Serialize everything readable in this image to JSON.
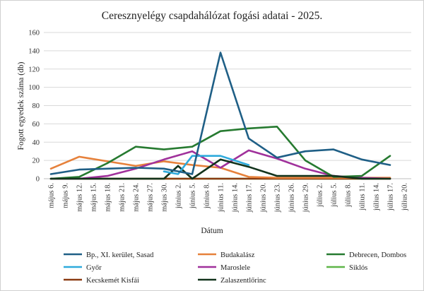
{
  "chart_data": {
    "type": "line",
    "title": "Ceresznyelégy csapdahálózat fogási adatai - 2025.",
    "xlabel": "Dátum",
    "ylabel": "Fogott egyedek száma (db)",
    "ylim": [
      0,
      160
    ],
    "yticks": [
      0,
      20,
      40,
      60,
      80,
      100,
      120,
      140,
      160
    ],
    "grid": true,
    "legend_position": "bottom",
    "x": [
      "május 6.",
      "május 9.",
      "május 12.",
      "május 15.",
      "május 18.",
      "május 21.",
      "május 24.",
      "május 27.",
      "május 30.",
      "június 2.",
      "június 5.",
      "június 8.",
      "június 11.",
      "június 14.",
      "június 17.",
      "június 20.",
      "június 23.",
      "június 26.",
      "június 29.",
      "július 2.",
      "július 5.",
      "július 8.",
      "július 11.",
      "július 14.",
      "július 17.",
      "július 20."
    ],
    "series": [
      {
        "name": "Bp., XI. kerület, Sasad",
        "color": "#1f5f86",
        "points": [
          [
            0,
            5
          ],
          [
            2,
            10
          ],
          [
            4,
            11
          ],
          [
            6,
            12
          ],
          [
            8,
            11
          ],
          [
            10,
            5
          ],
          [
            12,
            138
          ],
          [
            14,
            44
          ],
          [
            16,
            23
          ],
          [
            18,
            30
          ],
          [
            20,
            32
          ],
          [
            22,
            21
          ],
          [
            24,
            15
          ]
        ]
      },
      {
        "name": "Budakalász",
        "color": "#e6813b",
        "points": [
          [
            0,
            11
          ],
          [
            2,
            24
          ],
          [
            4,
            19
          ],
          [
            6,
            14
          ],
          [
            8,
            19
          ],
          [
            10,
            15
          ],
          [
            12,
            12
          ],
          [
            14,
            2
          ],
          [
            16,
            1
          ],
          [
            18,
            1
          ],
          [
            20,
            1
          ],
          [
            22,
            1
          ],
          [
            24,
            1
          ]
        ]
      },
      {
        "name": "Debrecen, Dombos",
        "color": "#267a30",
        "points": [
          [
            0,
            0
          ],
          [
            2,
            2
          ],
          [
            4,
            17
          ],
          [
            6,
            35
          ],
          [
            8,
            32
          ],
          [
            10,
            35
          ],
          [
            12,
            52
          ],
          [
            14,
            55
          ],
          [
            16,
            57
          ],
          [
            18,
            20
          ],
          [
            20,
            2
          ],
          [
            22,
            3
          ],
          [
            24,
            25
          ]
        ]
      },
      {
        "name": "Győr",
        "color": "#2eaadc",
        "points": [
          [
            8,
            8
          ],
          [
            9,
            5
          ],
          [
            10,
            25
          ],
          [
            12,
            25
          ],
          [
            14,
            15
          ]
        ]
      },
      {
        "name": "Maroslele",
        "color": "#a0319b",
        "points": [
          [
            0,
            0
          ],
          [
            2,
            0
          ],
          [
            4,
            3
          ],
          [
            6,
            11
          ],
          [
            8,
            21
          ],
          [
            10,
            30
          ],
          [
            12,
            12
          ],
          [
            14,
            31
          ],
          [
            16,
            22
          ],
          [
            18,
            11
          ],
          [
            20,
            3
          ],
          [
            22,
            1
          ],
          [
            24,
            0
          ]
        ]
      },
      {
        "name": "Siklós",
        "color": "#5eb548",
        "points": [
          [
            0,
            0
          ],
          [
            2,
            0
          ],
          [
            4,
            0
          ],
          [
            6,
            0
          ],
          [
            8,
            0
          ],
          [
            10,
            0
          ],
          [
            12,
            0
          ],
          [
            14,
            0
          ],
          [
            16,
            0
          ],
          [
            18,
            0
          ],
          [
            20,
            0
          ],
          [
            22,
            0
          ],
          [
            24,
            0
          ]
        ]
      },
      {
        "name": "Kecskemét Kisfái",
        "color": "#8a3b12",
        "points": [
          [
            0,
            0
          ],
          [
            2,
            0
          ],
          [
            4,
            0
          ],
          [
            6,
            0
          ],
          [
            8,
            0
          ],
          [
            10,
            0
          ],
          [
            12,
            0
          ],
          [
            14,
            0
          ],
          [
            16,
            0
          ],
          [
            18,
            0
          ],
          [
            20,
            0
          ],
          [
            22,
            0
          ],
          [
            24,
            0
          ]
        ]
      },
      {
        "name": "Zalaszentlőrinc",
        "color": "#12331c",
        "points": [
          [
            0,
            0
          ],
          [
            2,
            0
          ],
          [
            4,
            0
          ],
          [
            6,
            0
          ],
          [
            8,
            0
          ],
          [
            9,
            14
          ],
          [
            10,
            0
          ],
          [
            12,
            21
          ],
          [
            14,
            13
          ],
          [
            16,
            3
          ],
          [
            18,
            3
          ],
          [
            20,
            3
          ],
          [
            22,
            0
          ],
          [
            24,
            0
          ]
        ]
      }
    ]
  }
}
